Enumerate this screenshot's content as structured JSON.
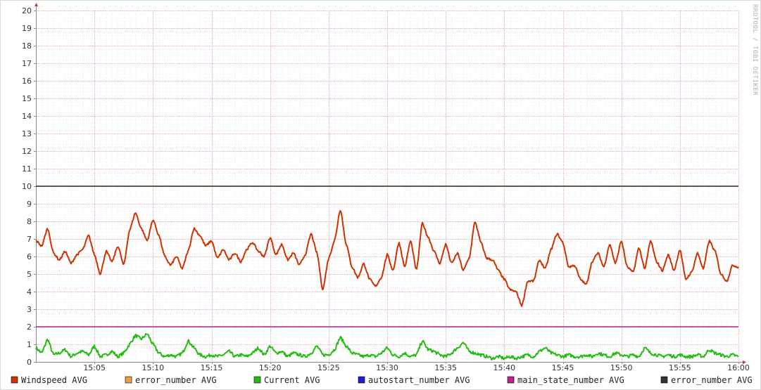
{
  "watermark": "RRDTOOL / TOBI OETIKER",
  "chart_data": {
    "type": "line",
    "ylim": [
      0,
      20
    ],
    "y_ticks": [
      "0",
      "1",
      "2",
      "3",
      "4",
      "5",
      "6",
      "7",
      "8",
      "9",
      "10",
      "11",
      "12",
      "13",
      "14",
      "15",
      "16",
      "17",
      "18",
      "19",
      "20"
    ],
    "x_ticks": [
      "15:05",
      "15:10",
      "15:15",
      "15:20",
      "15:25",
      "15:30",
      "15:35",
      "15:40",
      "15:45",
      "15:50",
      "15:55",
      "16:00"
    ],
    "x_range_minutes": [
      0,
      60
    ],
    "grid": true,
    "legend_position": "bottom",
    "series": [
      {
        "name": "Windspeed AVG",
        "color": "#cc3300",
        "x": [
          0,
          0.5,
          1,
          1.5,
          2,
          2.5,
          3,
          3.5,
          4,
          4.5,
          5,
          5.5,
          6,
          6.5,
          7,
          7.5,
          8,
          8.5,
          9,
          9.5,
          10,
          10.5,
          11,
          11.5,
          12,
          12.5,
          13,
          13.5,
          14,
          14.5,
          15,
          15.5,
          16,
          16.5,
          17,
          17.5,
          18,
          18.5,
          19,
          19.5,
          20,
          20.5,
          21,
          21.5,
          22,
          22.5,
          23,
          23.5,
          24,
          24.5,
          25,
          25.5,
          26,
          26.5,
          27,
          27.5,
          28,
          28.5,
          29,
          29.5,
          30,
          30.5,
          31,
          31.5,
          32,
          32.5,
          33,
          33.5,
          34,
          34.5,
          35,
          35.5,
          36,
          36.5,
          37,
          37.5,
          38,
          38.5,
          39,
          39.5,
          40,
          40.5,
          41,
          41.5,
          42,
          42.5,
          43,
          43.5,
          44,
          44.5,
          45,
          45.5,
          46,
          46.5,
          47,
          47.5,
          48,
          48.5,
          49,
          49.5,
          50,
          50.5,
          51,
          51.5,
          52,
          52.5,
          53,
          53.5,
          54,
          54.5,
          55,
          55.5,
          56,
          56.5,
          57,
          57.5,
          58,
          58.5,
          59,
          59.5,
          60
        ],
        "values": [
          6.9,
          6.6,
          7.6,
          6.2,
          5.8,
          6.3,
          5.6,
          6.1,
          6.4,
          7.2,
          6.1,
          5.0,
          6.3,
          5.7,
          6.6,
          5.5,
          7.5,
          8.5,
          7.6,
          6.9,
          8.1,
          7.2,
          6.0,
          5.5,
          6.0,
          5.3,
          6.3,
          7.6,
          7.2,
          6.6,
          6.9,
          5.9,
          6.4,
          5.8,
          6.2,
          5.7,
          6.4,
          6.8,
          6.3,
          6.0,
          7.1,
          6.1,
          6.7,
          5.8,
          6.2,
          5.5,
          6.1,
          7.3,
          6.2,
          4.1,
          5.9,
          6.9,
          8.7,
          6.7,
          5.4,
          4.8,
          5.6,
          4.7,
          4.3,
          4.8,
          6.1,
          5.2,
          6.8,
          5.4,
          6.9,
          5.2,
          7.9,
          7.1,
          6.3,
          5.6,
          6.7,
          5.6,
          6.2,
          5.2,
          5.9,
          8.0,
          6.8,
          5.9,
          5.8,
          5.2,
          4.7,
          4.1,
          4.0,
          3.2,
          4.6,
          4.6,
          5.8,
          5.3,
          6.4,
          7.3,
          6.8,
          5.4,
          5.5,
          4.7,
          4.4,
          5.7,
          6.2,
          5.4,
          6.7,
          5.6,
          6.9,
          5.4,
          5.1,
          6.5,
          5.3,
          6.9,
          5.7,
          5.2,
          6.1,
          5.2,
          6.4,
          4.7,
          5.1,
          6.2,
          5.3,
          6.9,
          6.3,
          5.0,
          4.6,
          5.5,
          5.4
        ],
        "style": "jagged"
      },
      {
        "name": "error_number AVG",
        "color": "#ec9d48",
        "x": [
          0,
          60
        ],
        "values": [
          10,
          10
        ],
        "style": "flat"
      },
      {
        "name": "Current AVG",
        "color": "#24bc14",
        "x": [
          0,
          0.5,
          1,
          1.5,
          2,
          2.5,
          3,
          3.5,
          4,
          4.5,
          5,
          5.5,
          6,
          6.5,
          7,
          7.5,
          8,
          8.5,
          9,
          9.5,
          10,
          10.5,
          11,
          11.5,
          12,
          12.5,
          13,
          13.5,
          14,
          14.5,
          15,
          15.5,
          16,
          16.5,
          17,
          17.5,
          18,
          18.5,
          19,
          19.5,
          20,
          20.5,
          21,
          21.5,
          22,
          22.5,
          23,
          23.5,
          24,
          24.5,
          25,
          25.5,
          26,
          26.5,
          27,
          27.5,
          28,
          28.5,
          29,
          29.5,
          30,
          30.5,
          31,
          31.5,
          32,
          32.5,
          33,
          33.5,
          34,
          34.5,
          35,
          35.5,
          36,
          36.5,
          37,
          37.5,
          38,
          38.5,
          39,
          39.5,
          40,
          40.5,
          41,
          41.5,
          42,
          42.5,
          43,
          43.5,
          44,
          44.5,
          45,
          45.5,
          46,
          46.5,
          47,
          47.5,
          48,
          48.5,
          49,
          49.5,
          50,
          50.5,
          51,
          51.5,
          52,
          52.5,
          53,
          53.5,
          54,
          54.5,
          55,
          55.5,
          56,
          56.5,
          57,
          57.5,
          58,
          58.5,
          59,
          59.5,
          60
        ],
        "values": [
          0.8,
          0.5,
          1.3,
          0.4,
          0.5,
          0.7,
          0.3,
          0.5,
          0.6,
          0.4,
          0.9,
          0.3,
          0.4,
          0.6,
          0.3,
          0.5,
          1.0,
          1.5,
          1.3,
          1.6,
          1.0,
          0.5,
          0.3,
          0.4,
          0.3,
          0.5,
          1.2,
          0.8,
          0.4,
          0.3,
          0.4,
          0.3,
          0.4,
          0.6,
          0.3,
          0.4,
          0.3,
          0.5,
          0.8,
          0.4,
          0.9,
          0.5,
          0.6,
          0.3,
          0.5,
          0.4,
          0.3,
          0.5,
          0.9,
          0.4,
          0.4,
          0.7,
          1.4,
          0.9,
          0.5,
          0.4,
          0.3,
          0.4,
          0.3,
          0.5,
          0.8,
          0.4,
          0.3,
          0.5,
          0.3,
          0.4,
          1.2,
          0.7,
          0.6,
          0.4,
          0.3,
          0.5,
          0.8,
          1.1,
          0.6,
          0.5,
          0.4,
          0.3,
          0.2,
          0.3,
          0.2,
          0.3,
          0.2,
          0.3,
          0.4,
          0.3,
          0.6,
          0.8,
          0.5,
          0.4,
          0.3,
          0.4,
          0.3,
          0.3,
          0.4,
          0.3,
          0.5,
          0.4,
          0.3,
          0.5,
          0.4,
          0.3,
          0.4,
          0.3,
          0.8,
          0.5,
          0.4,
          0.3,
          0.4,
          0.3,
          0.4,
          0.3,
          0.3,
          0.4,
          0.3,
          0.7,
          0.5,
          0.4,
          0.3,
          0.4,
          0.3
        ],
        "style": "jagged"
      },
      {
        "name": "autostart_number AVG",
        "color": "#1e1bcc",
        "x": [],
        "values": [],
        "style": "flat"
      },
      {
        "name": "main_state_number AVG",
        "color": "#c41e8c",
        "x": [
          0,
          60
        ],
        "values": [
          2,
          2
        ],
        "style": "flat"
      },
      {
        "name": "error_number AVG",
        "color": "#333333",
        "x": [
          0,
          60
        ],
        "values": [
          10,
          10
        ],
        "style": "flat"
      }
    ]
  }
}
